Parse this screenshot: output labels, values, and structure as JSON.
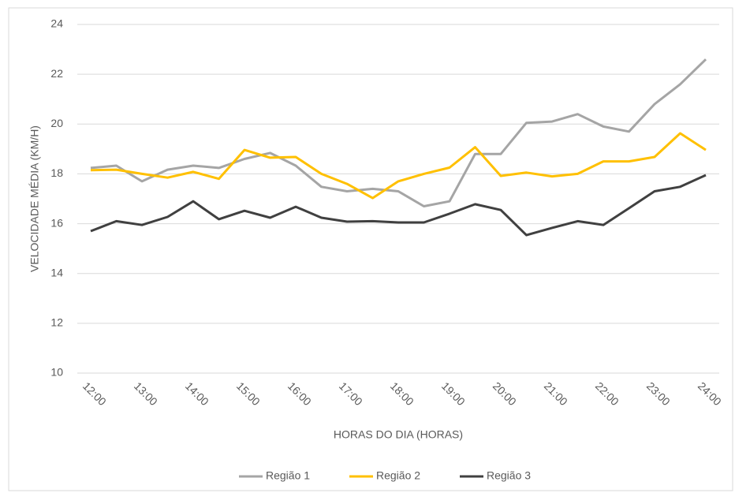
{
  "chart_data": {
    "type": "line",
    "x_label": "HORAS DO DIA (HORAS)",
    "y_label": "VELOCIDADE MÉDIA (KM/H)",
    "categories": [
      "12:00",
      null,
      "13:00",
      null,
      "14:00",
      null,
      "15:00",
      null,
      "16:00",
      null,
      "17:00",
      null,
      "18:00",
      null,
      "19:00",
      null,
      "20:00",
      null,
      "21:00",
      null,
      "22:00",
      null,
      "23:00",
      null,
      "24:00"
    ],
    "series": [
      {
        "name": "Região 1",
        "color": "#a5a5a5",
        "values": [
          18.24,
          18.33,
          17.7,
          18.17,
          18.33,
          18.24,
          18.6,
          18.84,
          18.33,
          17.48,
          17.3,
          17.4,
          17.3,
          16.7,
          16.9,
          18.8,
          18.8,
          20.05,
          20.1,
          20.4,
          19.9,
          19.7,
          20.8,
          21.6,
          22.6
        ]
      },
      {
        "name": "Região 2",
        "color": "#ffc000",
        "values": [
          18.15,
          18.17,
          18.0,
          17.85,
          18.08,
          17.8,
          18.96,
          18.65,
          18.68,
          18.0,
          17.6,
          17.03,
          17.7,
          18.0,
          18.25,
          19.07,
          17.92,
          18.05,
          17.9,
          18.0,
          18.5,
          18.5,
          18.68,
          19.63,
          18.96
        ]
      },
      {
        "name": "Região 3",
        "color": "#404040",
        "values": [
          15.7,
          16.1,
          15.95,
          16.27,
          16.9,
          16.18,
          16.52,
          16.24,
          16.68,
          16.24,
          16.08,
          16.1,
          16.05,
          16.05,
          16.4,
          16.78,
          16.55,
          15.54,
          15.83,
          16.1,
          15.95,
          16.62,
          17.3,
          17.48,
          17.95
        ]
      }
    ],
    "ylim": [
      10,
      24
    ],
    "yticks": [
      10,
      12,
      14,
      16,
      18,
      20,
      22,
      24
    ],
    "grid": true,
    "legend": "bottom"
  }
}
